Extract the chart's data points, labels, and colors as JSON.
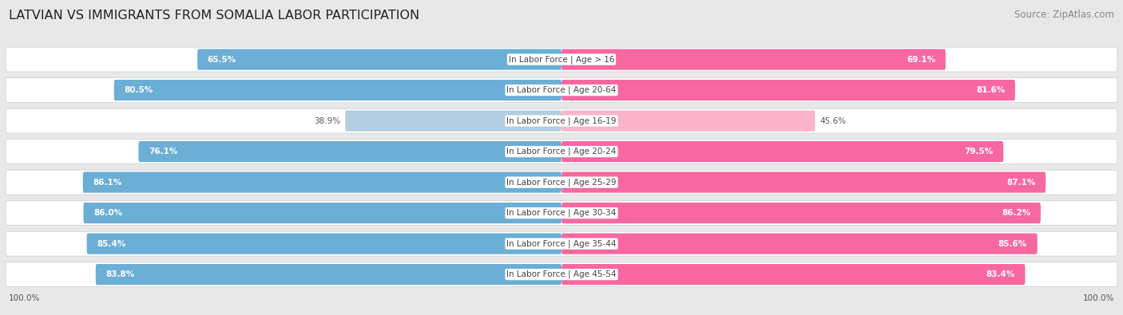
{
  "title": "LATVIAN VS IMMIGRANTS FROM SOMALIA LABOR PARTICIPATION",
  "source": "Source: ZipAtlas.com",
  "categories": [
    "In Labor Force | Age > 16",
    "In Labor Force | Age 20-64",
    "In Labor Force | Age 16-19",
    "In Labor Force | Age 20-24",
    "In Labor Force | Age 25-29",
    "In Labor Force | Age 30-34",
    "In Labor Force | Age 35-44",
    "In Labor Force | Age 45-54"
  ],
  "latvian_values": [
    65.5,
    80.5,
    38.9,
    76.1,
    86.1,
    86.0,
    85.4,
    83.8
  ],
  "somalia_values": [
    69.1,
    81.6,
    45.6,
    79.5,
    87.1,
    86.2,
    85.6,
    83.4
  ],
  "latvian_color": "#6baed6",
  "latvian_color_light": "#b3cde3",
  "somalia_color": "#f768a1",
  "somalia_color_light": "#fbb4ca",
  "background_color": "#e8e8e8",
  "row_bg_color": "#ffffff",
  "bar_max": 100.0,
  "title_fontsize": 11.5,
  "source_fontsize": 8.5,
  "label_fontsize": 7.5,
  "value_fontsize": 7.5,
  "legend_fontsize": 8.5,
  "footer_fontsize": 7.5
}
